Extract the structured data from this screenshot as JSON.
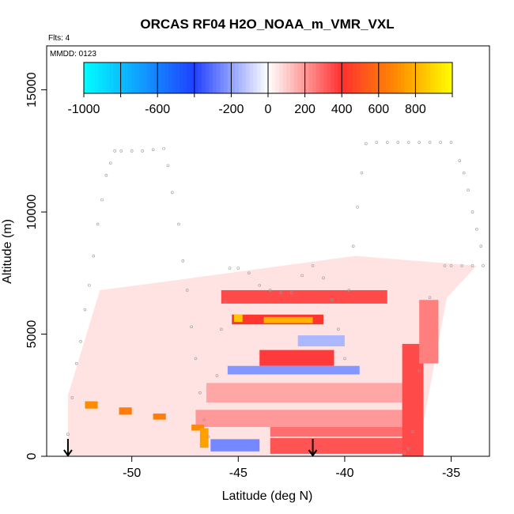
{
  "chart_data": {
    "type": "heatmap",
    "title": "ORCAS RF04 H2O_NOAA_m_VMR_VXL",
    "subtitle_flts": "Flts: 4",
    "subtitle_date": "MMDD: 0123",
    "xlabel": "Latitude (deg N)",
    "ylabel": "Altitude (m)",
    "xlim": [
      -54.0,
      -33.2
    ],
    "ylim": [
      0,
      16800
    ],
    "x_ticks": [
      "-50",
      "-45",
      "-40",
      "-35"
    ],
    "x_tick_values": [
      -50,
      -45,
      -40,
      -35
    ],
    "y_ticks": [
      "0",
      "5000",
      "10000",
      "15000"
    ],
    "y_tick_values": [
      0,
      5000,
      10000,
      15000
    ],
    "colorbar": {
      "range": [
        -1000,
        1000
      ],
      "tick_labels": [
        "-1000",
        "-600",
        "-200",
        "0",
        "200",
        "400",
        "600",
        "800"
      ],
      "tick_values": [
        -1000,
        -600,
        -200,
        0,
        200,
        400,
        600,
        800
      ],
      "colors": {
        "neg_max": "#00ffff",
        "neg_mid": "#2040ff",
        "zero": "#ffffff",
        "pos_mid": "#ff3030",
        "pos_high": "#ff8c00",
        "pos_max": "#ffff00"
      }
    },
    "arrows_lat": [
      -53.0,
      -41.5
    ],
    "flight_track": [
      [
        -53.0,
        900
      ],
      [
        -52.8,
        2400
      ],
      [
        -52.6,
        3800
      ],
      [
        -52.4,
        4700
      ],
      [
        -52.2,
        6000
      ],
      [
        -52.0,
        7000
      ],
      [
        -51.8,
        8200
      ],
      [
        -51.6,
        9500
      ],
      [
        -51.4,
        10500
      ],
      [
        -51.2,
        11500
      ],
      [
        -51.0,
        12000
      ],
      [
        -50.8,
        12500
      ],
      [
        -50.5,
        12500
      ],
      [
        -50.0,
        12500
      ],
      [
        -49.5,
        12500
      ],
      [
        -49.0,
        12550
      ],
      [
        -48.5,
        12600
      ],
      [
        -48.3,
        11900
      ],
      [
        -48.1,
        10800
      ],
      [
        -47.8,
        9500
      ],
      [
        -47.6,
        8000
      ],
      [
        -47.4,
        6800
      ],
      [
        -47.2,
        5300
      ],
      [
        -47.0,
        4000
      ],
      [
        -46.8,
        2600
      ],
      [
        -46.6,
        1500
      ],
      [
        -46.4,
        800
      ],
      [
        -46.0,
        3300
      ],
      [
        -45.8,
        5200
      ],
      [
        -45.6,
        6300
      ],
      [
        -45.4,
        7700
      ],
      [
        -45.0,
        7700
      ],
      [
        -44.5,
        7500
      ],
      [
        -44.0,
        7000
      ],
      [
        -43.5,
        6800
      ],
      [
        -43.0,
        6700
      ],
      [
        -42.5,
        6700
      ],
      [
        -42.0,
        7400
      ],
      [
        -41.5,
        7800
      ],
      [
        -41.0,
        7300
      ],
      [
        -40.6,
        6400
      ],
      [
        -40.3,
        5200
      ],
      [
        -40.0,
        4000
      ],
      [
        -39.8,
        6800
      ],
      [
        -39.6,
        8600
      ],
      [
        -39.4,
        10200
      ],
      [
        -39.2,
        11600
      ],
      [
        -39.0,
        12800
      ],
      [
        -38.5,
        12850
      ],
      [
        -38.0,
        12850
      ],
      [
        -37.5,
        12850
      ],
      [
        -37.0,
        12850
      ],
      [
        -36.5,
        12850
      ],
      [
        -36.0,
        12850
      ],
      [
        -35.5,
        12850
      ],
      [
        -35.0,
        12850
      ],
      [
        -34.6,
        12100
      ],
      [
        -34.4,
        11600
      ],
      [
        -34.2,
        10900
      ],
      [
        -34.0,
        10000
      ],
      [
        -33.8,
        9300
      ],
      [
        -33.6,
        8600
      ],
      [
        -33.5,
        7800
      ],
      [
        -34.0,
        7800
      ],
      [
        -34.5,
        7800
      ],
      [
        -35.0,
        7800
      ],
      [
        -35.3,
        7800
      ],
      [
        -36.0,
        6500
      ],
      [
        -36.5,
        3500
      ],
      [
        -36.8,
        1000
      ],
      [
        -37.0,
        300
      ],
      [
        -37.2,
        150
      ]
    ],
    "features": [
      {
        "kind": "band",
        "lat": [
          -53.0,
          -33.8
        ],
        "alt": [
          0,
          8200
        ],
        "value": 60,
        "shape": "domain"
      },
      {
        "kind": "band",
        "lat": [
          -45.8,
          -38.0
        ],
        "alt": [
          6250,
          6800
        ],
        "value": 350
      },
      {
        "kind": "band",
        "lat": [
          -45.3,
          -41.0
        ],
        "alt": [
          5400,
          5800
        ],
        "value": 420
      },
      {
        "kind": "band",
        "lat": [
          -43.8,
          -41.5
        ],
        "alt": [
          5450,
          5700
        ],
        "value": 800
      },
      {
        "kind": "band",
        "lat": [
          -45.2,
          -44.8
        ],
        "alt": [
          5500,
          5800
        ],
        "value": 850
      },
      {
        "kind": "band",
        "lat": [
          -44.0,
          -40.5
        ],
        "alt": [
          3700,
          4350
        ],
        "value": 380
      },
      {
        "kind": "band",
        "lat": [
          -45.5,
          -39.3
        ],
        "alt": [
          3350,
          3700
        ],
        "value": -220
      },
      {
        "kind": "band",
        "lat": [
          -42.2,
          -40.0
        ],
        "alt": [
          4500,
          4950
        ],
        "value": -150
      },
      {
        "kind": "band",
        "lat": [
          -46.5,
          -36.5
        ],
        "alt": [
          2200,
          3000
        ],
        "value": 170
      },
      {
        "kind": "band",
        "lat": [
          -47.0,
          -36.5
        ],
        "alt": [
          1200,
          1900
        ],
        "value": 200
      },
      {
        "kind": "band",
        "lat": [
          -43.5,
          -36.5
        ],
        "alt": [
          800,
          1200
        ],
        "value": 280
      },
      {
        "kind": "band",
        "lat": [
          -43.5,
          -37.0
        ],
        "alt": [
          100,
          750
        ],
        "value": 330
      },
      {
        "kind": "band",
        "lat": [
          -46.3,
          -44.0
        ],
        "alt": [
          200,
          700
        ],
        "value": -250
      },
      {
        "kind": "band",
        "lat": [
          -37.3,
          -36.3
        ],
        "alt": [
          0,
          4600
        ],
        "value": 350
      },
      {
        "kind": "band",
        "lat": [
          -36.5,
          -35.6
        ],
        "alt": [
          3800,
          6400
        ],
        "value": 250
      },
      {
        "kind": "band",
        "lat": [
          -52.2,
          -51.6
        ],
        "alt": [
          1950,
          2250
        ],
        "value": 700
      },
      {
        "kind": "band",
        "lat": [
          -50.6,
          -50.0
        ],
        "alt": [
          1700,
          2000
        ],
        "value": 650
      },
      {
        "kind": "band",
        "lat": [
          -49.0,
          -48.4
        ],
        "alt": [
          1500,
          1750
        ],
        "value": 650
      },
      {
        "kind": "band",
        "lat": [
          -47.2,
          -46.6
        ],
        "alt": [
          1050,
          1300
        ],
        "value": 700
      },
      {
        "kind": "band",
        "lat": [
          -46.8,
          -46.4
        ],
        "alt": [
          350,
          1150
        ],
        "value": 750
      }
    ]
  }
}
